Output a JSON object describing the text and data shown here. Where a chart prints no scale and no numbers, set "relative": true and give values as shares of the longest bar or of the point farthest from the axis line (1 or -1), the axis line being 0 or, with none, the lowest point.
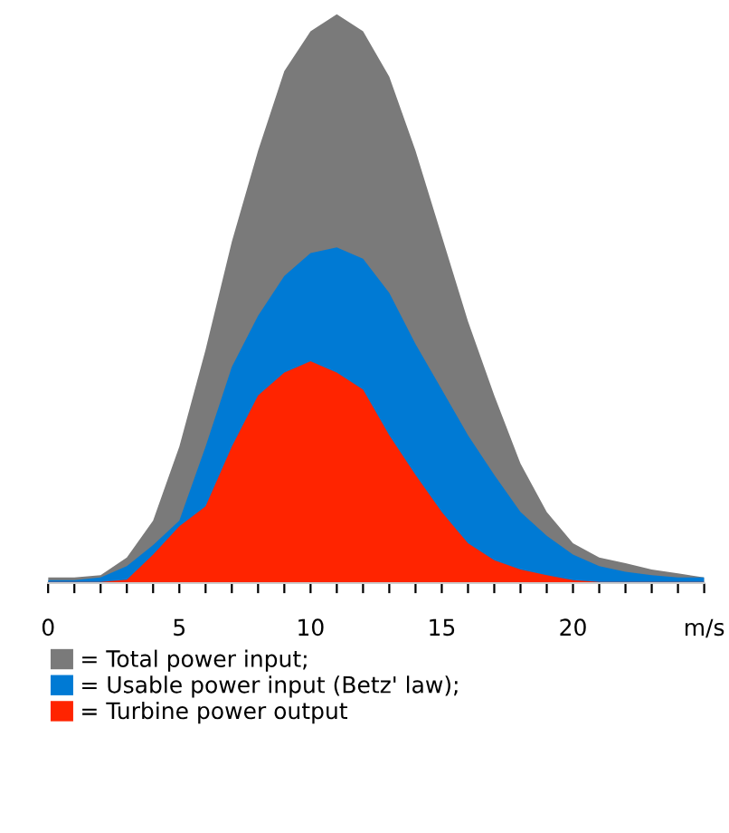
{
  "chart_data": {
    "type": "area",
    "relative": true,
    "x": [
      0,
      1,
      2,
      3,
      4,
      5,
      6,
      7,
      8,
      9,
      10,
      11,
      12,
      13,
      14,
      15,
      16,
      17,
      18,
      19,
      20,
      21,
      22,
      23,
      24,
      25
    ],
    "xlim": [
      0,
      25
    ],
    "xticks": [
      0,
      {
        "value": 1,
        "label": null
      },
      {
        "value": 2,
        "label": null
      },
      {
        "value": 3,
        "label": null
      },
      {
        "value": 4,
        "label": null
      },
      5,
      {
        "value": 6,
        "label": null
      },
      {
        "value": 7,
        "label": null
      },
      {
        "value": 8,
        "label": null
      },
      {
        "value": 9,
        "label": null
      },
      10,
      {
        "value": 11,
        "label": null
      },
      {
        "value": 12,
        "label": null
      },
      {
        "value": 13,
        "label": null
      },
      {
        "value": 14,
        "label": null
      },
      15,
      {
        "value": 16,
        "label": null
      },
      {
        "value": 17,
        "label": null
      },
      {
        "value": 18,
        "label": null
      },
      {
        "value": 19,
        "label": null
      },
      20,
      {
        "value": 21,
        "label": null
      },
      {
        "value": 22,
        "label": null
      },
      {
        "value": 23,
        "label": null
      },
      {
        "value": 24,
        "label": null
      },
      {
        "value": 25,
        "label": "m/s"
      }
    ],
    "legend": "bottom",
    "grid": false,
    "series": [
      {
        "name": "= Total power input;",
        "color": "#7a7a7a",
        "values": [
          0.01,
          0.01,
          0.014,
          0.045,
          0.11,
          0.24,
          0.41,
          0.6,
          0.76,
          0.9,
          0.97,
          1.0,
          0.97,
          0.89,
          0.76,
          0.61,
          0.46,
          0.33,
          0.21,
          0.125,
          0.07,
          0.045,
          0.035,
          0.024,
          0.017,
          0.01
        ]
      },
      {
        "name": "= Usable power input (Betz' law);",
        "color": "#007ad4",
        "values": [
          0.005,
          0.005,
          0.01,
          0.03,
          0.067,
          0.11,
          0.24,
          0.38,
          0.47,
          0.54,
          0.58,
          0.59,
          0.57,
          0.51,
          0.42,
          0.34,
          0.26,
          0.19,
          0.125,
          0.083,
          0.05,
          0.03,
          0.02,
          0.014,
          0.01,
          0.01
        ]
      },
      {
        "name": "= Turbine power output",
        "color": "#ff2400",
        "values": [
          0.002,
          0.002,
          0.002,
          0.006,
          0.05,
          0.1,
          0.135,
          0.24,
          0.33,
          0.37,
          0.39,
          0.37,
          0.34,
          0.26,
          0.19,
          0.125,
          0.07,
          0.04,
          0.024,
          0.014,
          0.005,
          0.002,
          0.002,
          0.002,
          0.002,
          0.002
        ]
      }
    ]
  }
}
